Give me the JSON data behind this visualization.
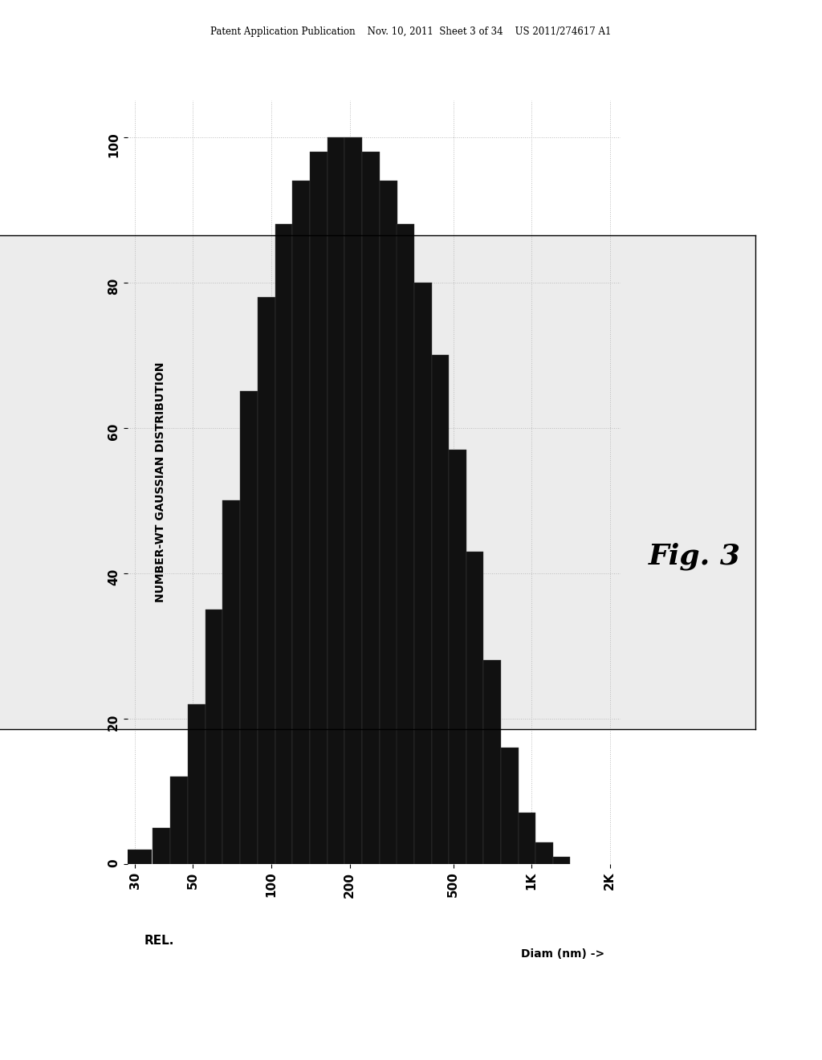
{
  "title": "",
  "ylabel_left": "REL.",
  "xlabel_bottom": "Diam (nm) ->",
  "ylabel_right": "NUMBER-WT GAUSSIAN DISTRIBUTION",
  "fig_caption": "Fig. 3",
  "header_text": "Patent Application Publication    Nov. 10, 2011  Sheet 3 of 34    US 2011/274617 A1",
  "bar_color": "#111111",
  "background_color": "#ffffff",
  "plot_bg_color": "#ececec",
  "grid_color": "#cccccc",
  "rel_ticks": [
    0,
    20,
    40,
    60,
    80,
    100
  ],
  "diam_ticks": [
    30,
    50,
    100,
    200,
    500,
    1000,
    2000
  ],
  "diam_tick_labels": [
    "30",
    "50",
    "100",
    "200",
    "500",
    "1K",
    "2K"
  ],
  "bars": [
    {
      "diam_low": 28,
      "diam_high": 35,
      "rel": 2
    },
    {
      "diam_low": 35,
      "diam_high": 41,
      "rel": 5
    },
    {
      "diam_low": 41,
      "diam_high": 48,
      "rel": 12
    },
    {
      "diam_low": 48,
      "diam_high": 56,
      "rel": 22
    },
    {
      "diam_low": 56,
      "diam_high": 65,
      "rel": 35
    },
    {
      "diam_low": 65,
      "diam_high": 76,
      "rel": 50
    },
    {
      "diam_low": 76,
      "diam_high": 89,
      "rel": 65
    },
    {
      "diam_low": 89,
      "diam_high": 104,
      "rel": 78
    },
    {
      "diam_low": 104,
      "diam_high": 121,
      "rel": 88
    },
    {
      "diam_low": 121,
      "diam_high": 141,
      "rel": 94
    },
    {
      "diam_low": 141,
      "diam_high": 165,
      "rel": 98
    },
    {
      "diam_low": 165,
      "diam_high": 192,
      "rel": 100
    },
    {
      "diam_low": 192,
      "diam_high": 224,
      "rel": 100
    },
    {
      "diam_low": 224,
      "diam_high": 261,
      "rel": 98
    },
    {
      "diam_low": 261,
      "diam_high": 305,
      "rel": 94
    },
    {
      "diam_low": 305,
      "diam_high": 355,
      "rel": 88
    },
    {
      "diam_low": 355,
      "diam_high": 414,
      "rel": 80
    },
    {
      "diam_low": 414,
      "diam_high": 483,
      "rel": 70
    },
    {
      "diam_low": 483,
      "diam_high": 563,
      "rel": 57
    },
    {
      "diam_low": 563,
      "diam_high": 656,
      "rel": 43
    },
    {
      "diam_low": 656,
      "diam_high": 765,
      "rel": 28
    },
    {
      "diam_low": 765,
      "diam_high": 892,
      "rel": 16
    },
    {
      "diam_low": 892,
      "diam_high": 1040,
      "rel": 7
    },
    {
      "diam_low": 1040,
      "diam_high": 1212,
      "rel": 3
    },
    {
      "diam_low": 1212,
      "diam_high": 1413,
      "rel": 1
    }
  ]
}
